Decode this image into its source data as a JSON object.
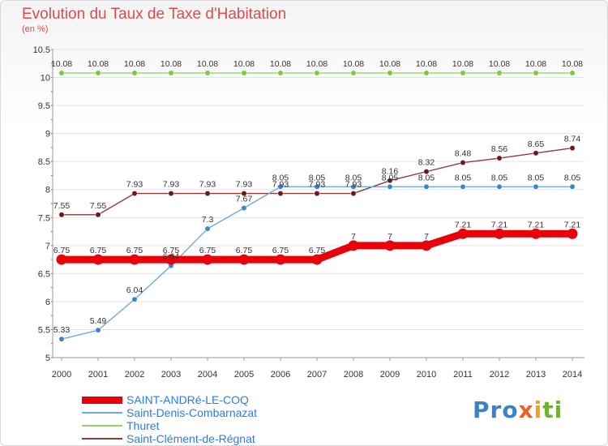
{
  "colors": {
    "title": "#e04a4a",
    "axis": "#999999",
    "grid": "#e3e3e3",
    "minor_tick": "#e04a4a"
  },
  "logo": {
    "text": "Proxiti",
    "parts": [
      "Pro",
      "x",
      "i",
      "ti"
    ]
  },
  "chart_data": {
    "type": "line",
    "title": "Evolution du Taux de Taxe d'Habitation",
    "ylabel": "(en %)",
    "xlabel": "",
    "ylim": [
      5,
      10.5
    ],
    "yticks": [
      "5",
      "5.5",
      "6",
      "6.5",
      "7",
      "7.5",
      "8",
      "8.5",
      "9",
      "9.5",
      "10",
      "10.5"
    ],
    "grid": "horizontal",
    "legend": "bottom-left",
    "categories": [
      "2000",
      "2001",
      "2002",
      "2003",
      "2004",
      "2005",
      "2006",
      "2007",
      "2008",
      "2009",
      "2010",
      "2011",
      "2012",
      "2013",
      "2014"
    ],
    "series": [
      {
        "name": "SAINT-ANDRé-LE-COQ",
        "color": "#e8000b",
        "marker": "#e8000b",
        "values": [
          6.75,
          6.75,
          6.75,
          6.75,
          6.75,
          6.75,
          6.75,
          6.75,
          7,
          7,
          7,
          7.21,
          7.21,
          7.21,
          7.21
        ],
        "labels": [
          "6.75",
          "6.75",
          "6.75",
          "6.75",
          "6.75",
          "6.75",
          "6.75",
          "6.75",
          "7",
          "7",
          "7",
          "7.21",
          "7.21",
          "7.21",
          "7.21"
        ]
      },
      {
        "name": "Saint-Denis-Combarnazat",
        "color": "#6fa8dc",
        "marker": "#3d85c6",
        "values": [
          5.33,
          5.49,
          6.04,
          6.64,
          7.3,
          7.67,
          8.05,
          8.05,
          8.05,
          8.05,
          8.05,
          8.05,
          8.05,
          8.05,
          8.05
        ],
        "labels": [
          "5.33",
          "5.49",
          "6.04",
          "6.64",
          "7.3",
          "7.67",
          "8.05",
          "8.05",
          "8.05",
          "8.05",
          "8.05",
          "8.05",
          "8.05",
          "8.05",
          "8.05"
        ]
      },
      {
        "name": "Thuret",
        "color": "#93d36b",
        "marker": "#7ac943",
        "values": [
          10.08,
          10.08,
          10.08,
          10.08,
          10.08,
          10.08,
          10.08,
          10.08,
          10.08,
          10.08,
          10.08,
          10.08,
          10.08,
          10.08,
          10.08
        ],
        "labels": [
          "10.08",
          "10.08",
          "10.08",
          "10.08",
          "10.08",
          "10.08",
          "10.08",
          "10.08",
          "10.08",
          "10.08",
          "10.08",
          "10.08",
          "10.08",
          "10.08",
          "10.08"
        ]
      },
      {
        "name": "Saint-Clément-de-Régnat",
        "color": "#8c3b3b",
        "marker": "#6b1a1a",
        "values": [
          7.55,
          7.55,
          7.93,
          7.93,
          7.93,
          7.93,
          7.93,
          7.93,
          7.93,
          8.16,
          8.32,
          8.48,
          8.56,
          8.65,
          8.74
        ],
        "labels": [
          "7.55",
          "7.55",
          "7.93",
          "7.93",
          "7.93",
          "7.93",
          "7.93",
          "7.93",
          "7.93",
          "8.16",
          "8.32",
          "8.48",
          "8.56",
          "8.65",
          "8.74"
        ]
      }
    ]
  }
}
